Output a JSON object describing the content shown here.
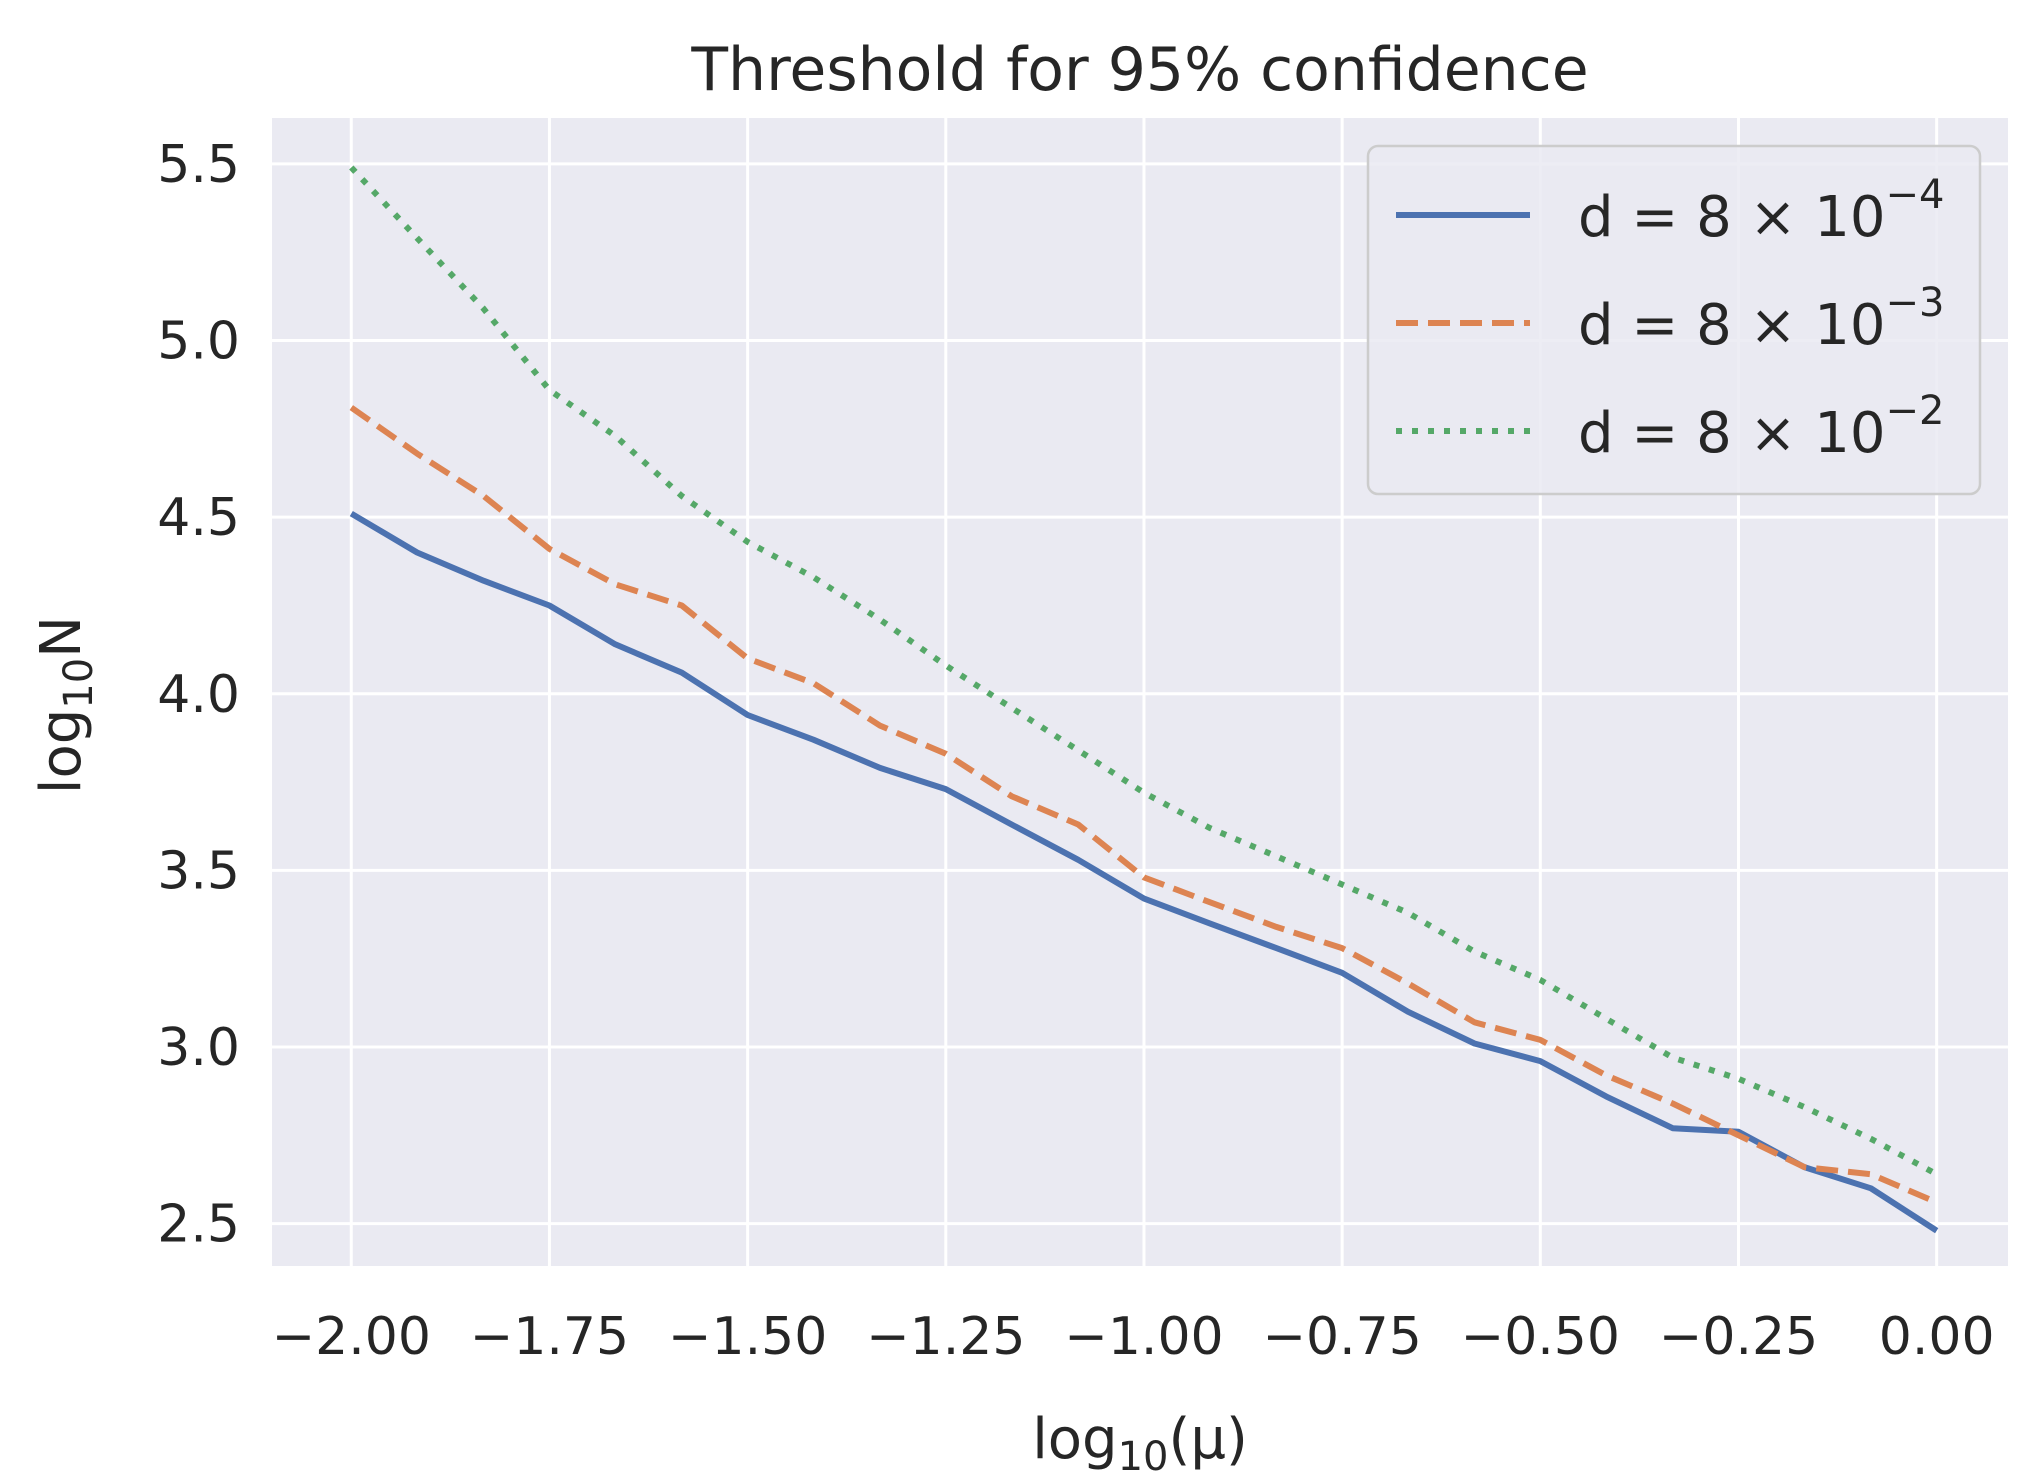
{
  "chart_data": {
    "type": "line",
    "title": "Threshold for 95% confidence",
    "xlabel": {
      "base": "log",
      "sub": "10",
      "rest": "(μ)"
    },
    "ylabel": {
      "base": "log",
      "sub": "10",
      "rest": "N"
    },
    "xlim": [
      -2.1,
      0.09
    ],
    "ylim": [
      2.38,
      5.63
    ],
    "xticks": [
      -2.0,
      -1.75,
      -1.5,
      -1.25,
      -1.0,
      -0.75,
      -0.5,
      -0.25,
      0.0
    ],
    "xtick_labels": [
      "−2.00",
      "−1.75",
      "−1.50",
      "−1.25",
      "−1.00",
      "−0.75",
      "−0.50",
      "−0.25",
      "0.00"
    ],
    "yticks": [
      2.5,
      3.0,
      3.5,
      4.0,
      4.5,
      5.0,
      5.5
    ],
    "ytick_labels": [
      "2.5",
      "3.0",
      "3.5",
      "4.0",
      "4.5",
      "5.0",
      "5.5"
    ],
    "grid": true,
    "legend_position": "top-right",
    "x": [
      -2.0,
      -1.917,
      -1.833,
      -1.75,
      -1.667,
      -1.583,
      -1.5,
      -1.417,
      -1.333,
      -1.25,
      -1.167,
      -1.083,
      -1.0,
      -0.917,
      -0.833,
      -0.75,
      -0.667,
      -0.583,
      -0.5,
      -0.417,
      -0.333,
      -0.25,
      -0.167,
      -0.083,
      0.0
    ],
    "series": [
      {
        "name": "d = 8 × 10",
        "exponent": "−4",
        "style": "solid",
        "color": "#4c72b0",
        "values": [
          4.51,
          4.4,
          4.32,
          4.25,
          4.14,
          4.06,
          3.94,
          3.87,
          3.79,
          3.73,
          3.63,
          3.53,
          3.42,
          3.35,
          3.28,
          3.21,
          3.1,
          3.01,
          2.96,
          2.86,
          2.77,
          2.76,
          2.66,
          2.6,
          2.48
        ]
      },
      {
        "name": "d = 8 × 10",
        "exponent": "−3",
        "style": "dashed",
        "color": "#dd8452",
        "values": [
          4.81,
          4.68,
          4.56,
          4.41,
          4.31,
          4.25,
          4.1,
          4.03,
          3.91,
          3.83,
          3.71,
          3.63,
          3.48,
          3.41,
          3.34,
          3.28,
          3.18,
          3.07,
          3.02,
          2.92,
          2.84,
          2.75,
          2.66,
          2.64,
          2.56
        ]
      },
      {
        "name": "d = 8 × 10",
        "exponent": "−2",
        "style": "dotted",
        "color": "#55a868",
        "values": [
          5.49,
          5.29,
          5.09,
          4.86,
          4.73,
          4.56,
          4.43,
          4.33,
          4.21,
          4.08,
          3.96,
          3.84,
          3.72,
          3.62,
          3.54,
          3.46,
          3.38,
          3.27,
          3.19,
          3.08,
          2.97,
          2.91,
          2.83,
          2.74,
          2.64
        ]
      }
    ]
  }
}
